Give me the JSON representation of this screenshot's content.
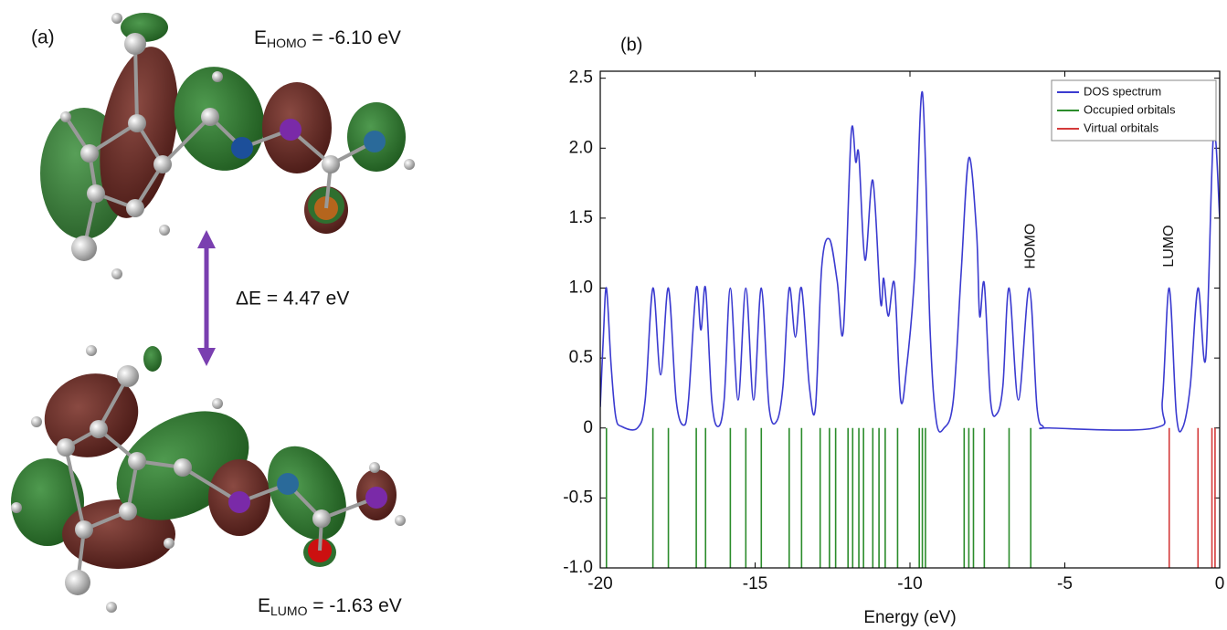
{
  "panel_a": {
    "label": "(a)",
    "homo": {
      "symbol": "E",
      "subscript": "HOMO",
      "text": " = -6.10 eV"
    },
    "gap": "ΔE = 4.47 eV",
    "lumo": {
      "symbol": "E",
      "subscript": "LUMO",
      "text": " = -1.63 eV"
    }
  },
  "chart_data": {
    "type": "line",
    "panel_label": "(b)",
    "x_label": "Energy (eV)",
    "xlim": [
      -20,
      0
    ],
    "xticks": [
      -20,
      -15,
      -10,
      -5,
      0
    ],
    "ylim": [
      -1.0,
      2.55
    ],
    "yticks": [
      {
        "value": -1.0,
        "label": "-1.0"
      },
      -0.5,
      0,
      0.5,
      {
        "value": 1.0,
        "label": "1.0"
      },
      1.5,
      {
        "value": 2.0,
        "label": "2.0"
      },
      2.5
    ],
    "legend": "top-right",
    "series": [
      {
        "name": "DOS spectrum",
        "color": "#3b3bd0",
        "x": [
          -20,
          -19.9,
          -19.8,
          -19.65,
          -19.5,
          -19.3,
          -18.8,
          -18.55,
          -18.3,
          -18.05,
          -17.8,
          -17.55,
          -17.3,
          -17.15,
          -16.9,
          -16.75,
          -16.6,
          -16.4,
          -16.2,
          -16.0,
          -15.8,
          -15.55,
          -15.3,
          -15.05,
          -14.8,
          -14.55,
          -14.3,
          -14.1,
          -13.9,
          -13.7,
          -13.5,
          -13.25,
          -13.05,
          -12.85,
          -12.6,
          -12.35,
          -12.15,
          -11.9,
          -11.75,
          -11.65,
          -11.45,
          -11.2,
          -10.95,
          -10.85,
          -10.7,
          -10.5,
          -10.3,
          -10.1,
          -9.85,
          -9.6,
          -9.35,
          -9.15,
          -8.9,
          -8.6,
          -8.35,
          -8.1,
          -7.85,
          -7.75,
          -7.6,
          -7.4,
          -7.2,
          -7.0,
          -6.8,
          -6.5,
          -6.15,
          -5.9,
          -5.7,
          -5.5,
          -2.1,
          -1.85,
          -1.63,
          -1.4,
          -1.2,
          -0.95,
          -0.7,
          -0.45,
          -0.2,
          0
        ],
        "values": [
          0.15,
          0.65,
          1.0,
          0.45,
          0.08,
          0.01,
          0.0,
          0.2,
          1.0,
          0.38,
          1.0,
          0.2,
          0.02,
          0.2,
          1.0,
          0.7,
          1.0,
          0.2,
          0.01,
          0.2,
          1.0,
          0.2,
          1.0,
          0.2,
          1.0,
          0.15,
          0.05,
          0.3,
          1.0,
          0.65,
          1.0,
          0.3,
          0.15,
          1.15,
          1.35,
          1.05,
          0.7,
          2.1,
          1.9,
          1.95,
          1.2,
          1.77,
          0.9,
          1.07,
          0.8,
          1.03,
          0.2,
          0.45,
          1.1,
          2.4,
          0.7,
          0.05,
          0.0,
          0.2,
          1.1,
          1.93,
          1.4,
          0.8,
          1.03,
          0.2,
          0.1,
          0.3,
          1.0,
          0.2,
          1.0,
          0.15,
          0.01,
          0.0,
          0.0,
          0.2,
          1.0,
          0.1,
          0.0,
          0.3,
          1.0,
          0.5,
          2.1,
          1.5
        ]
      },
      {
        "name": "Occupied orbitals",
        "color": "#2b8c2b",
        "x": [
          -19.8,
          -18.3,
          -17.8,
          -16.9,
          -16.6,
          -15.8,
          -15.3,
          -14.8,
          -13.9,
          -13.5,
          -12.9,
          -12.6,
          -12.4,
          -12.0,
          -11.85,
          -11.65,
          -11.5,
          -11.2,
          -11.0,
          -10.8,
          -10.4,
          -9.7,
          -9.6,
          -9.5,
          -8.25,
          -8.1,
          -7.95,
          -7.6,
          -6.8,
          -6.1
        ]
      },
      {
        "name": "Virtual orbitals",
        "color": "#d43a3a",
        "x": [
          -1.63,
          -0.7,
          -0.25,
          -0.15
        ]
      }
    ],
    "annotations": [
      {
        "text": "HOMO",
        "x": -6.1
      },
      {
        "text": "LUMO",
        "x": -1.63
      }
    ]
  }
}
